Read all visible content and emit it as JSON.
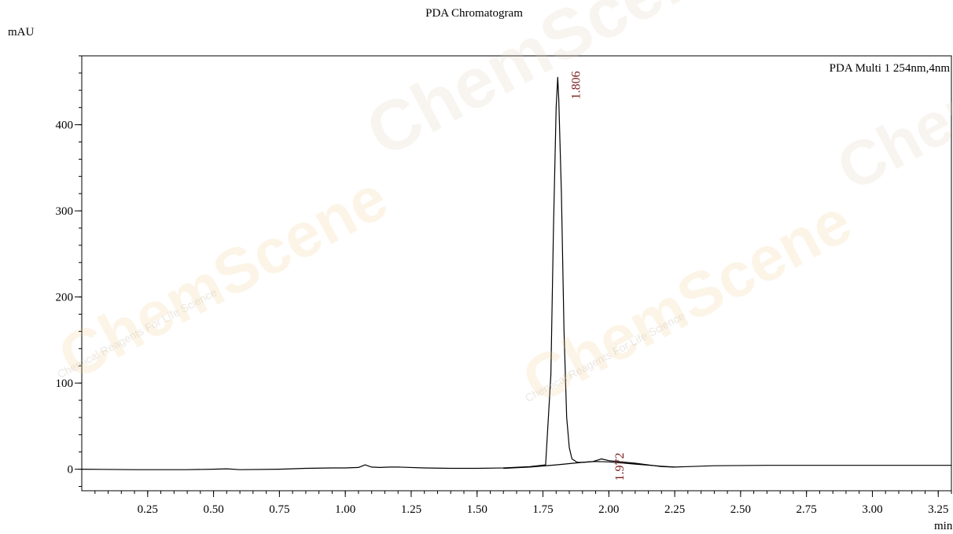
{
  "chart_data": {
    "type": "line",
    "title": "PDA Chromatogram",
    "ylabel": "mAU",
    "xlabel": "min",
    "xlim": [
      0.0,
      3.3
    ],
    "ylim": [
      -25,
      480
    ],
    "x_ticks": [
      0.25,
      0.5,
      0.75,
      1.0,
      1.25,
      1.5,
      1.75,
      2.0,
      2.25,
      2.5,
      2.75,
      3.0,
      3.25
    ],
    "x_tick_labels": [
      "0.25",
      "0.50",
      "0.75",
      "1.00",
      "1.25",
      "1.50",
      "1.75",
      "2.00",
      "2.25",
      "2.50",
      "2.75",
      "3.00",
      "3.25"
    ],
    "y_ticks": [
      0,
      100,
      200,
      300,
      400
    ],
    "y_tick_labels": [
      "0",
      "100",
      "200",
      "300",
      "400"
    ],
    "legend": "PDA Multi 1 254nm,4nm",
    "legend_position": "top-right",
    "grid": false,
    "series": [
      {
        "name": "PDA Multi 1 254nm,4nm",
        "color": "#000000",
        "x": [
          0.0,
          0.2,
          0.4,
          0.5,
          0.55,
          0.6,
          0.75,
          0.85,
          0.95,
          1.0,
          1.05,
          1.075,
          1.1,
          1.13,
          1.17,
          1.2,
          1.3,
          1.4,
          1.5,
          1.6,
          1.7,
          1.76,
          1.78,
          1.79,
          1.8,
          1.806,
          1.81,
          1.82,
          1.83,
          1.84,
          1.85,
          1.86,
          1.88,
          1.9,
          1.94,
          1.972,
          2.0,
          2.1,
          2.2,
          2.25,
          2.3,
          2.4,
          2.6,
          2.8,
          3.0,
          3.2,
          3.3
        ],
        "y": [
          0,
          -0.5,
          -0.5,
          0,
          0.5,
          -0.5,
          0,
          1,
          1.5,
          1.5,
          2,
          5,
          2.5,
          2,
          2.5,
          2.5,
          1.5,
          1,
          1,
          1.5,
          3,
          5,
          110,
          280,
          420,
          455,
          430,
          320,
          160,
          60,
          25,
          12,
          8,
          8,
          9,
          12,
          10,
          7,
          3,
          2.5,
          3,
          4,
          4.5,
          4.5,
          4.5,
          4.5,
          4.5
        ]
      },
      {
        "name": "",
        "color": "#000000",
        "x": [
          1.6,
          1.7,
          1.8,
          1.9,
          1.95,
          2.0,
          2.1,
          2.2,
          2.25
        ],
        "y": [
          1.0,
          2.5,
          5.0,
          8.0,
          9.0,
          8.5,
          6.0,
          3.5,
          2.5
        ]
      }
    ],
    "peak_labels": [
      {
        "text": "1.806",
        "x": 1.806,
        "y": 455
      },
      {
        "text": "1.972",
        "x": 1.972,
        "y": 12
      }
    ]
  },
  "watermark": {
    "brand_text": "ChemScene",
    "tagline": "Chemical Reagents For Life Science",
    "color": "#e8c88a"
  }
}
